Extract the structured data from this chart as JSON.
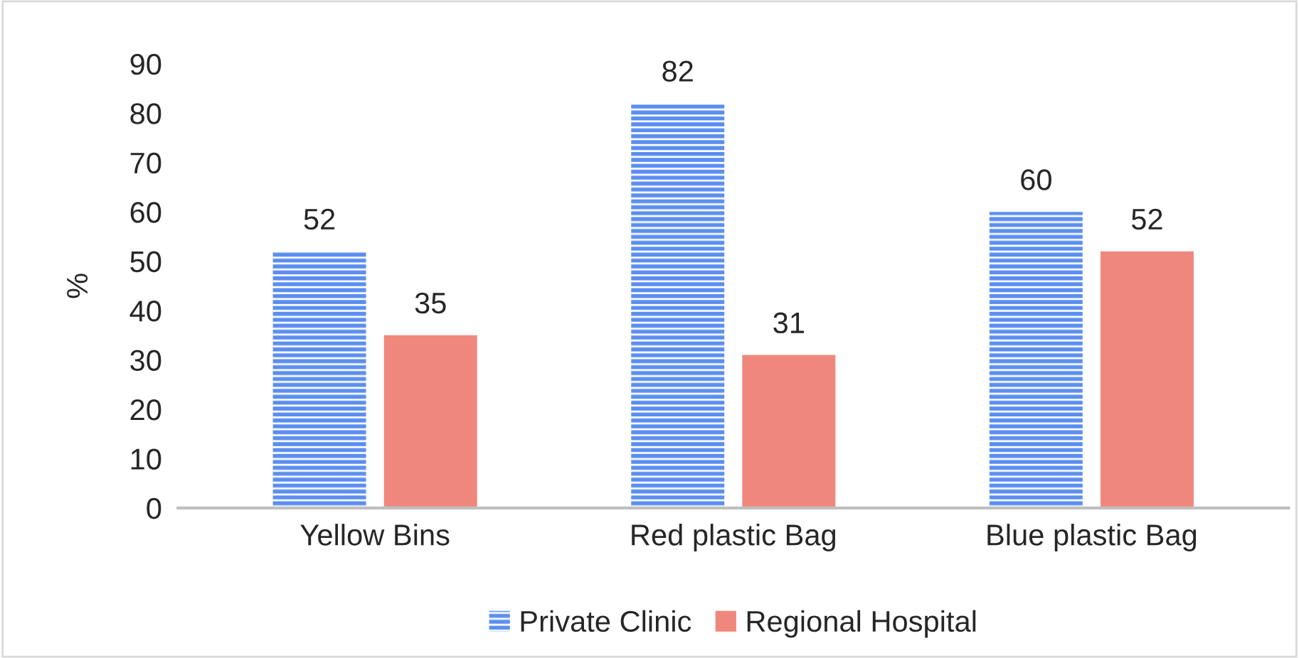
{
  "chart_data": {
    "type": "bar",
    "ylabel": "%",
    "categories": [
      "Yellow Bins",
      "Red plastic Bag",
      "Blue plastic Bag"
    ],
    "series": [
      {
        "name": "Private Clinic",
        "color": "#5b8ef0",
        "values": [
          52,
          82,
          60
        ]
      },
      {
        "name": "Regional Hospital",
        "color": "#f0877c",
        "values": [
          35,
          31,
          52
        ]
      }
    ],
    "ylim": [
      0,
      90
    ],
    "yticks": [
      0,
      10,
      20,
      30,
      40,
      50,
      60,
      70,
      80,
      90
    ],
    "data_labels": true,
    "grid": false,
    "legend": "bottom"
  }
}
